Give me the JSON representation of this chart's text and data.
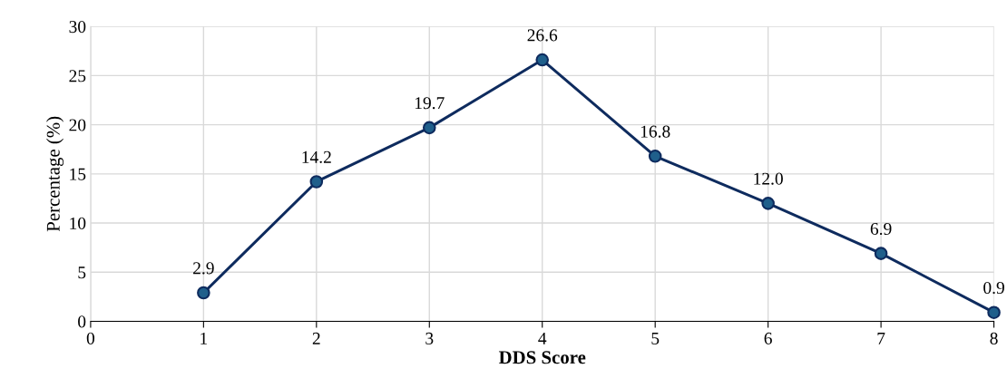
{
  "chart_data": {
    "type": "line",
    "xlabel": "DDS Score",
    "ylabel": "Percentage (%)",
    "x": [
      1,
      2,
      3,
      4,
      5,
      6,
      7,
      8
    ],
    "series": [
      {
        "color": "#0e2b5e",
        "values": [
          2.9,
          14.2,
          19.7,
          26.6,
          16.8,
          12.0,
          6.9,
          0.9
        ],
        "value_labels": [
          "2.9",
          "14.2",
          "19.7",
          "26.6",
          "16.8",
          "12.0",
          "6.9",
          "0.9"
        ]
      }
    ],
    "xlim": [
      0,
      8
    ],
    "xticks": [
      0,
      1,
      2,
      3,
      4,
      5,
      6,
      7,
      8
    ],
    "ylim": [
      0,
      30
    ],
    "yticks": [
      0,
      5,
      10,
      15,
      20,
      25,
      30
    ],
    "grid": true,
    "marker": "circle",
    "line_style": "solid",
    "legend": false
  }
}
